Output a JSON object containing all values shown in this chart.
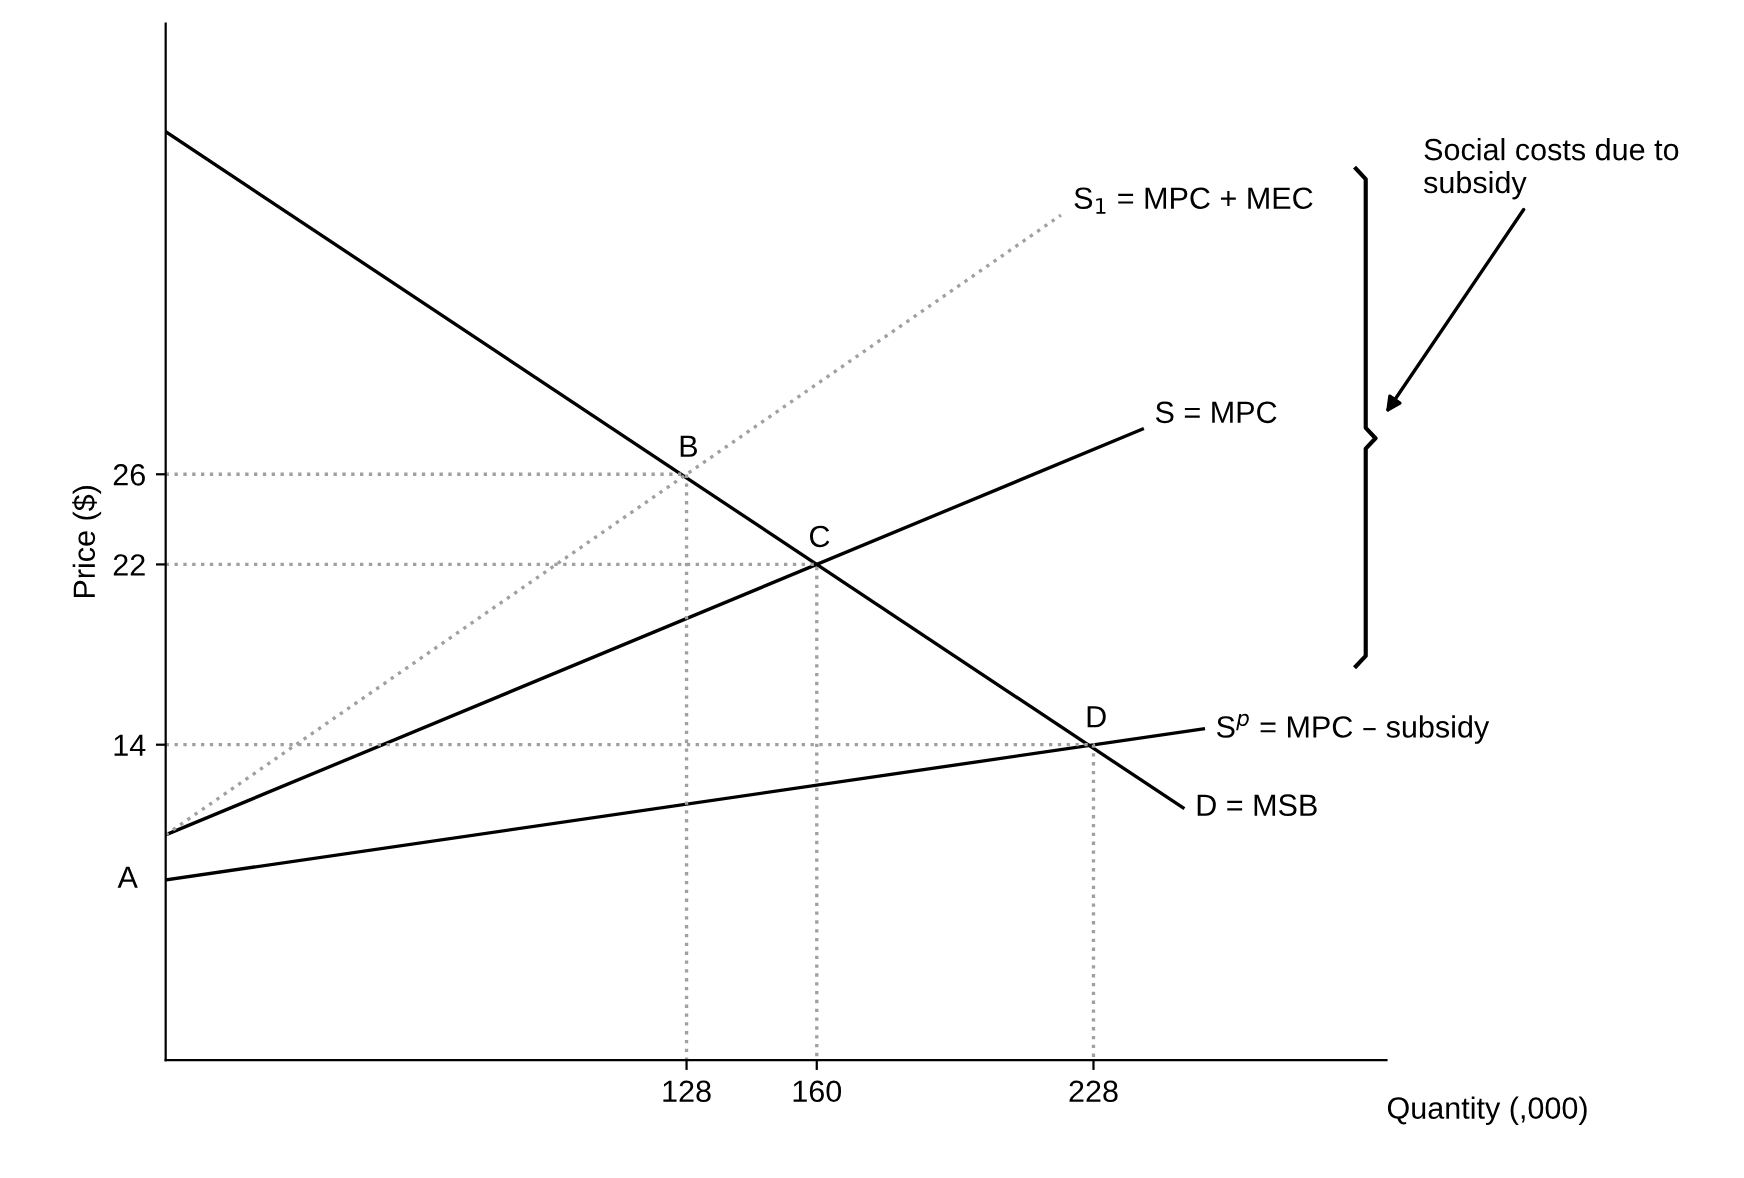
{
  "chart_data": {
    "type": "line",
    "xlabel": "Quantity (,000)",
    "ylabel": "Price ($)",
    "xlim": [
      0,
      300
    ],
    "ylim": [
      0,
      46
    ],
    "xticks": [
      128,
      160,
      228
    ],
    "yticks": [
      14,
      22,
      26
    ],
    "grid": false,
    "series": [
      {
        "name": "D = MSB",
        "color": "#000000",
        "line_style": "solid",
        "x": [
          0,
          250
        ],
        "values": [
          41.2,
          11.2
        ]
      },
      {
        "name": "S = MPC",
        "color": "#000000",
        "line_style": "solid",
        "x": [
          0,
          240
        ],
        "values": [
          10,
          28
        ]
      },
      {
        "name": "S$_{1}$ = MPC + MEC",
        "color": "#a0a0a0",
        "line_style": "dotted",
        "x": [
          0,
          220
        ],
        "values": [
          10,
          37.5
        ]
      },
      {
        "name": "S$^{p}$ = MPC – subsidy",
        "color": "#000000",
        "line_style": "solid",
        "x": [
          0,
          255
        ],
        "values": [
          8,
          14.7
        ]
      },
      {
        "color": "#a0a0a0",
        "line_style": "dotted",
        "x": [
          0,
          128,
          128
        ],
        "values": [
          26,
          26,
          0
        ]
      },
      {
        "color": "#a0a0a0",
        "line_style": "dotted",
        "x": [
          0,
          160,
          160
        ],
        "values": [
          22,
          22,
          0
        ]
      },
      {
        "color": "#a0a0a0",
        "line_style": "dotted",
        "x": [
          0,
          228,
          228
        ],
        "values": [
          14,
          14,
          0
        ]
      }
    ],
    "annotations": [
      {
        "text": "A",
        "x": 0,
        "y": 8
      },
      {
        "text": "B",
        "x": 128,
        "y": 26
      },
      {
        "text": "C",
        "x": 160,
        "y": 22
      },
      {
        "text": "D",
        "x": 228,
        "y": 14
      },
      "Social costs due to subsidy"
    ]
  }
}
